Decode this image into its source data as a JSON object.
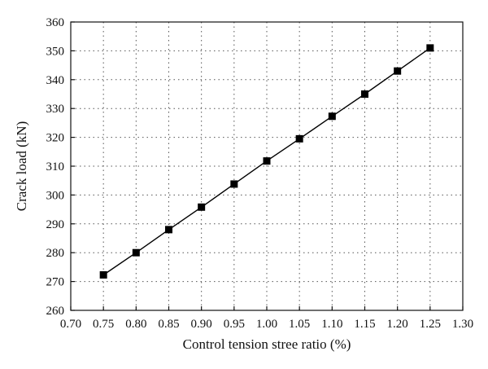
{
  "chart_data": {
    "type": "line",
    "title": "",
    "xlabel": "Control tension stree ratio (%)",
    "ylabel": "Crack load (kN)",
    "xlim": [
      0.7,
      1.3
    ],
    "ylim": [
      260,
      360
    ],
    "x_ticks": [
      "0.70",
      "0.75",
      "0.80",
      "0.85",
      "0.90",
      "0.95",
      "1.00",
      "1.05",
      "1.10",
      "1.15",
      "1.20",
      "1.25",
      "1.30"
    ],
    "y_ticks": [
      "260",
      "270",
      "280",
      "290",
      "300",
      "310",
      "320",
      "330",
      "340",
      "350",
      "360"
    ],
    "grid": true,
    "legend": "none",
    "marker": "square",
    "line_color": "#000000",
    "series": [
      {
        "x": [
          0.75,
          0.8,
          0.85,
          0.9,
          0.95,
          1.0,
          1.05,
          1.1,
          1.15,
          1.2,
          1.25
        ],
        "values": [
          272.3,
          280.0,
          288.0,
          295.8,
          303.8,
          311.8,
          319.5,
          327.3,
          335.0,
          343.0,
          351.0
        ]
      }
    ]
  }
}
